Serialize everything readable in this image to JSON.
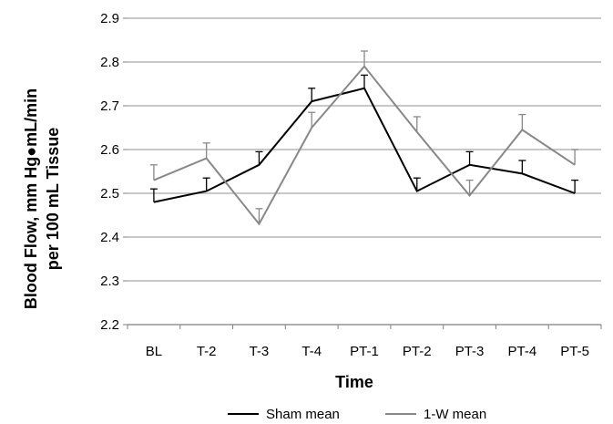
{
  "chart_data": {
    "type": "line",
    "title": "",
    "xlabel": "Time",
    "ylabel_line1": "Blood Flow, mm Hg●mL/min",
    "ylabel_line2": "per 100 mL Tissue",
    "categories": [
      "BL",
      "T-2",
      "T-3",
      "T-4",
      "PT-1",
      "PT-2",
      "PT-3",
      "PT-4",
      "PT-5"
    ],
    "ylim": [
      2.2,
      2.9
    ],
    "yticks": [
      "2.2",
      "2.3",
      "2.4",
      "2.5",
      "2.6",
      "2.7",
      "2.8",
      "2.9"
    ],
    "grid": true,
    "legend_position": "bottom",
    "series": [
      {
        "name": "Sham mean",
        "color": "#000000",
        "values": [
          2.48,
          2.505,
          2.565,
          2.71,
          2.74,
          2.505,
          2.565,
          2.545,
          2.5
        ],
        "error": [
          0.03,
          0.03,
          0.03,
          0.03,
          0.03,
          0.03,
          0.03,
          0.03,
          0.03
        ]
      },
      {
        "name": "1-W mean",
        "color": "#888888",
        "values": [
          2.53,
          2.58,
          2.43,
          2.65,
          2.79,
          2.64,
          2.495,
          2.645,
          2.565
        ],
        "error": [
          0.035,
          0.035,
          0.035,
          0.035,
          0.035,
          0.035,
          0.035,
          0.035,
          0.035
        ]
      }
    ]
  }
}
